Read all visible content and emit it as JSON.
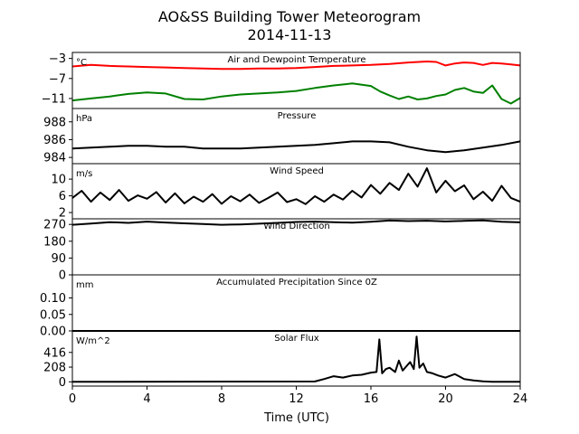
{
  "figure": {
    "title_line1": "AO&SS Building Tower Meteorogram",
    "title_line2": "2014-11-13",
    "xlabel": "Time (UTC)"
  },
  "chart_data": {
    "type": "line",
    "xlim": [
      0,
      24
    ],
    "xticks": [
      0,
      4,
      8,
      12,
      16,
      20,
      24
    ],
    "xtick_labels": [
      "0",
      "4",
      "8",
      "12",
      "16",
      "20",
      "24"
    ],
    "panels": [
      {
        "id": "temp",
        "title": "Air and Dewpoint Temperature",
        "unit": "°C",
        "ylim": [
          -13,
          -1.8
        ],
        "yticks": [
          -3,
          -7,
          -11
        ],
        "ytick_labels": [
          "−3",
          "−7",
          "−11"
        ],
        "series": [
          {
            "color": "#ff0000",
            "x": [
              0,
              1,
              2,
              3,
              4,
              5,
              6,
              7,
              8,
              9,
              10,
              11,
              12,
              13,
              14,
              15,
              16,
              17,
              18,
              19,
              19.5,
              20,
              20.5,
              21,
              21.5,
              22,
              22.5,
              23,
              23.5,
              24
            ],
            "y": [
              -4.6,
              -4.3,
              -4.5,
              -4.6,
              -4.7,
              -4.8,
              -4.9,
              -5.0,
              -5.1,
              -5.1,
              -5.0,
              -5.0,
              -4.9,
              -4.7,
              -4.5,
              -4.4,
              -4.3,
              -4.1,
              -3.8,
              -3.6,
              -3.7,
              -4.4,
              -4.0,
              -3.8,
              -3.9,
              -4.3,
              -3.9,
              -4.0,
              -4.2,
              -4.4
            ]
          },
          {
            "color": "#008000",
            "x": [
              0,
              1,
              2,
              3,
              4,
              5,
              6,
              7,
              8,
              9,
              10,
              11,
              12,
              13,
              14,
              15,
              16,
              16.5,
              17,
              17.5,
              18,
              18.5,
              19,
              19.5,
              20,
              20.5,
              21,
              21.5,
              22,
              22.5,
              23,
              23.5,
              24
            ],
            "y": [
              -11.4,
              -11.0,
              -10.6,
              -10.1,
              -9.8,
              -10.0,
              -11.1,
              -11.2,
              -10.6,
              -10.2,
              -10.0,
              -9.8,
              -9.5,
              -8.9,
              -8.4,
              -8.0,
              -8.5,
              -9.6,
              -10.4,
              -11.1,
              -10.6,
              -11.2,
              -11.0,
              -10.5,
              -10.2,
              -9.3,
              -8.9,
              -9.6,
              -9.9,
              -8.4,
              -11.1,
              -12.0,
              -10.9
            ]
          }
        ]
      },
      {
        "id": "pressure",
        "title": "Pressure",
        "unit": "hPa",
        "ylim": [
          983.3,
          989.5
        ],
        "yticks": [
          984,
          986,
          988
        ],
        "ytick_labels": [
          "984",
          "986",
          "988"
        ],
        "series": [
          {
            "color": "#000000",
            "x": [
              0,
              1,
              2,
              3,
              4,
              5,
              6,
              7,
              8,
              9,
              10,
              11,
              12,
              13,
              14,
              15,
              16,
              17,
              18,
              19,
              20,
              21,
              22,
              23,
              24
            ],
            "y": [
              985.0,
              985.1,
              985.2,
              985.3,
              985.3,
              985.2,
              985.2,
              985.0,
              985.0,
              985.0,
              985.1,
              985.2,
              985.3,
              985.4,
              985.6,
              985.8,
              985.8,
              985.7,
              985.2,
              984.8,
              984.6,
              984.8,
              985.1,
              985.4,
              985.8
            ]
          }
        ]
      },
      {
        "id": "wind-speed",
        "title": "Wind Speed",
        "unit": "m/s",
        "ylim": [
          0.5,
          13.7
        ],
        "yticks": [
          2,
          6,
          10
        ],
        "ytick_labels": [
          "2",
          "6",
          "10"
        ],
        "series": [
          {
            "color": "#000000",
            "x": [
              0,
              0.5,
              1,
              1.5,
              2,
              2.5,
              3,
              3.5,
              4,
              4.5,
              5,
              5.5,
              6,
              6.5,
              7,
              7.5,
              8,
              8.5,
              9,
              9.5,
              10,
              10.5,
              11,
              11.5,
              12,
              12.5,
              13,
              13.5,
              14,
              14.5,
              15,
              15.5,
              16,
              16.5,
              17,
              17.5,
              18,
              18.5,
              19,
              19.5,
              20,
              20.5,
              21,
              21.5,
              22,
              22.5,
              23,
              23.5,
              24
            ],
            "y": [
              5.5,
              7.2,
              4.6,
              6.8,
              5.0,
              7.4,
              4.8,
              6.1,
              5.3,
              6.9,
              4.4,
              6.6,
              4.2,
              5.8,
              4.6,
              6.4,
              4.1,
              5.9,
              4.7,
              6.3,
              4.3,
              5.5,
              6.8,
              4.5,
              5.2,
              4.0,
              5.9,
              4.6,
              6.3,
              5.1,
              7.2,
              5.6,
              8.6,
              6.5,
              9.1,
              7.4,
              11.3,
              8.2,
              12.6,
              6.8,
              9.6,
              7.1,
              8.5,
              5.2,
              7.0,
              4.8,
              8.4,
              5.5,
              4.6
            ]
          }
        ]
      },
      {
        "id": "wind-direction",
        "title": "Wind Direction",
        "unit": "",
        "ylim": [
          0,
          300
        ],
        "yticks": [
          0,
          90,
          180,
          270
        ],
        "ytick_labels": [
          "0",
          "90",
          "180",
          "270"
        ],
        "series": [
          {
            "color": "#000000",
            "x": [
              0,
              1,
              2,
              3,
              4,
              5,
              6,
              7,
              8,
              9,
              10,
              11,
              12,
              13,
              14,
              15,
              16,
              17,
              18,
              19,
              20,
              21,
              22,
              23,
              24
            ],
            "y": [
              268,
              275,
              282,
              278,
              285,
              280,
              276,
              272,
              268,
              270,
              274,
              278,
              283,
              285,
              282,
              279,
              284,
              291,
              288,
              290,
              286,
              289,
              292,
              284,
              281
            ]
          }
        ]
      },
      {
        "id": "precip",
        "title": "Accumulated Precipitation Since 0Z",
        "unit": "mm",
        "ylim": [
          0,
          0.17
        ],
        "yticks": [
          0.0,
          0.05,
          0.1
        ],
        "ytick_labels": [
          "0.00",
          "0.05",
          "0.10"
        ],
        "series": [
          {
            "color": "#000000",
            "x": [
              0,
              24
            ],
            "y": [
              0,
              0
            ]
          }
        ]
      },
      {
        "id": "solar",
        "title": "Solar Flux",
        "unit": "W/m^2",
        "ylim": [
          -60,
          720
        ],
        "yticks": [
          0,
          208,
          416
        ],
        "ytick_labels": [
          "0",
          "208",
          "416"
        ],
        "series": [
          {
            "color": "#000000",
            "x": [
              0,
              13.0,
              13.5,
              14.0,
              14.5,
              15.0,
              15.5,
              16.0,
              16.3,
              16.45,
              16.6,
              16.8,
              17.0,
              17.3,
              17.5,
              17.7,
              17.9,
              18.1,
              18.3,
              18.45,
              18.6,
              18.8,
              19.0,
              19.3,
              19.6,
              20.0,
              20.5,
              21.0,
              21.5,
              22.0,
              22.5,
              24
            ],
            "y": [
              0,
              5,
              40,
              80,
              60,
              90,
              100,
              130,
              140,
              600,
              120,
              180,
              200,
              140,
              300,
              160,
              220,
              280,
              180,
              640,
              200,
              260,
              140,
              120,
              90,
              60,
              110,
              40,
              20,
              8,
              2,
              0
            ]
          }
        ]
      }
    ]
  }
}
